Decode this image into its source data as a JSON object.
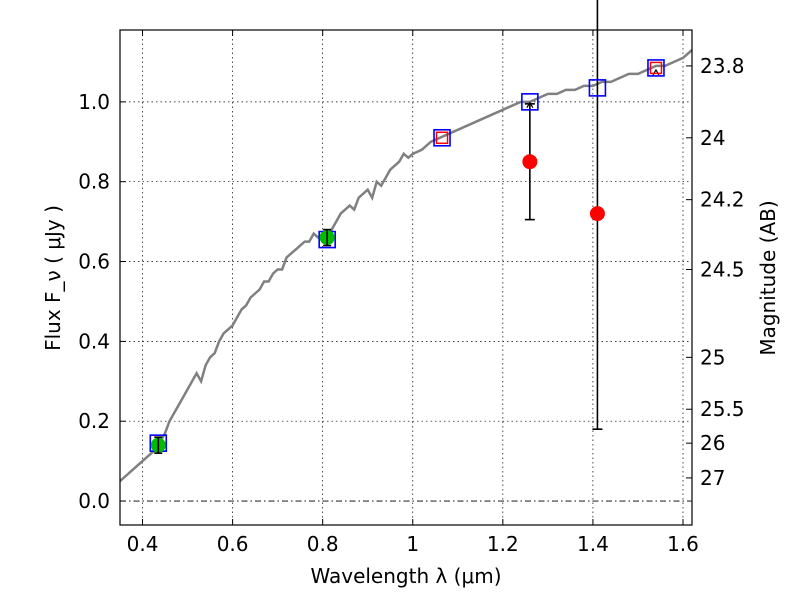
{
  "chart_data": {
    "type": "scatter",
    "xlabel": "Wavelength  λ (μm)",
    "ylabel": "Flux  F_ν  ( μJy )",
    "ylabel_right": "Magnitude (AB)",
    "xlim": [
      0.35,
      1.62
    ],
    "ylim": [
      -0.06,
      1.18
    ],
    "grid": true,
    "x_ticks": [
      0.4,
      0.6,
      0.8,
      1.0,
      1.2,
      1.4,
      1.6
    ],
    "x_tick_labels": [
      "0.4",
      "0.6",
      "0.8",
      "1",
      "1.2",
      "1.4",
      "1.6"
    ],
    "y_ticks": [
      0.0,
      0.2,
      0.4,
      0.6,
      0.8,
      1.0
    ],
    "y_tick_labels": [
      "0.0",
      "0.2",
      "0.4",
      "0.6",
      "0.8",
      "1.0"
    ],
    "right_ticks": [
      {
        "flux": 1.09,
        "label": "23.8"
      },
      {
        "flux": 0.91,
        "label": "24"
      },
      {
        "flux": 0.755,
        "label": "24.2"
      },
      {
        "flux": 0.58,
        "label": "24.5"
      },
      {
        "flux": 0.36,
        "label": "25"
      },
      {
        "flux": 0.23,
        "label": "25.5"
      },
      {
        "flux": 0.145,
        "label": "26"
      },
      {
        "flux": 0.058,
        "label": "27"
      }
    ],
    "zero_line": 0.0,
    "series": [
      {
        "kind": "sed-model",
        "color": "#808080",
        "x": [
          0.35,
          0.36,
          0.37,
          0.38,
          0.39,
          0.4,
          0.41,
          0.42,
          0.43,
          0.44,
          0.45,
          0.46,
          0.47,
          0.48,
          0.49,
          0.5,
          0.51,
          0.52,
          0.53,
          0.54,
          0.55,
          0.56,
          0.57,
          0.58,
          0.59,
          0.6,
          0.61,
          0.62,
          0.63,
          0.64,
          0.65,
          0.66,
          0.67,
          0.68,
          0.69,
          0.7,
          0.71,
          0.72,
          0.73,
          0.74,
          0.75,
          0.76,
          0.77,
          0.78,
          0.79,
          0.8,
          0.81,
          0.82,
          0.83,
          0.84,
          0.85,
          0.86,
          0.87,
          0.88,
          0.89,
          0.9,
          0.91,
          0.92,
          0.93,
          0.94,
          0.95,
          0.96,
          0.97,
          0.98,
          0.99,
          1.0,
          1.02,
          1.04,
          1.06,
          1.08,
          1.1,
          1.12,
          1.14,
          1.16,
          1.18,
          1.2,
          1.22,
          1.24,
          1.26,
          1.28,
          1.3,
          1.32,
          1.34,
          1.36,
          1.38,
          1.4,
          1.42,
          1.44,
          1.46,
          1.48,
          1.5,
          1.52,
          1.54,
          1.56,
          1.58,
          1.6,
          1.62
        ],
        "y": [
          0.05,
          0.06,
          0.07,
          0.08,
          0.09,
          0.1,
          0.11,
          0.12,
          0.13,
          0.15,
          0.17,
          0.2,
          0.22,
          0.24,
          0.26,
          0.28,
          0.3,
          0.32,
          0.3,
          0.34,
          0.36,
          0.37,
          0.4,
          0.42,
          0.43,
          0.44,
          0.46,
          0.48,
          0.49,
          0.51,
          0.52,
          0.53,
          0.55,
          0.55,
          0.57,
          0.58,
          0.58,
          0.61,
          0.62,
          0.63,
          0.64,
          0.65,
          0.65,
          0.67,
          0.66,
          0.67,
          0.66,
          0.68,
          0.7,
          0.72,
          0.73,
          0.74,
          0.73,
          0.76,
          0.77,
          0.78,
          0.76,
          0.8,
          0.79,
          0.81,
          0.83,
          0.84,
          0.85,
          0.87,
          0.86,
          0.87,
          0.88,
          0.9,
          0.91,
          0.92,
          0.93,
          0.94,
          0.95,
          0.96,
          0.97,
          0.98,
          0.99,
          1.0,
          1.0,
          1.01,
          1.02,
          1.02,
          1.03,
          1.03,
          1.04,
          1.04,
          1.05,
          1.05,
          1.06,
          1.07,
          1.07,
          1.08,
          1.09,
          1.09,
          1.1,
          1.11,
          1.13
        ]
      },
      {
        "kind": "model-photometry",
        "marker": "open-square",
        "color": "#0000ff",
        "x": [
          0.435,
          0.81,
          1.065,
          1.26,
          1.41,
          1.54
        ],
        "y": [
          0.145,
          0.655,
          0.91,
          1.0,
          1.035,
          1.085
        ]
      },
      {
        "kind": "observed-hst",
        "marker": "circle",
        "color": "#00bb00",
        "x": [
          0.435,
          0.81
        ],
        "y": [
          0.14,
          0.66
        ],
        "err": [
          0.02,
          0.02
        ]
      },
      {
        "kind": "observed-nir",
        "marker": "circle",
        "color": "#ff0000",
        "x": [
          1.065,
          1.26,
          1.41,
          1.54
        ],
        "y": [
          0.91,
          0.85,
          0.72,
          1.085
        ],
        "err_low": [
          0.0,
          0.145,
          0.54,
          0.0
        ],
        "err_high": [
          0.0,
          0.145,
          0.54,
          0.0
        ]
      }
    ],
    "upper_limits": [
      {
        "x": 1.26,
        "y": 0.998
      },
      {
        "x": 1.54,
        "y": 1.08
      }
    ]
  }
}
